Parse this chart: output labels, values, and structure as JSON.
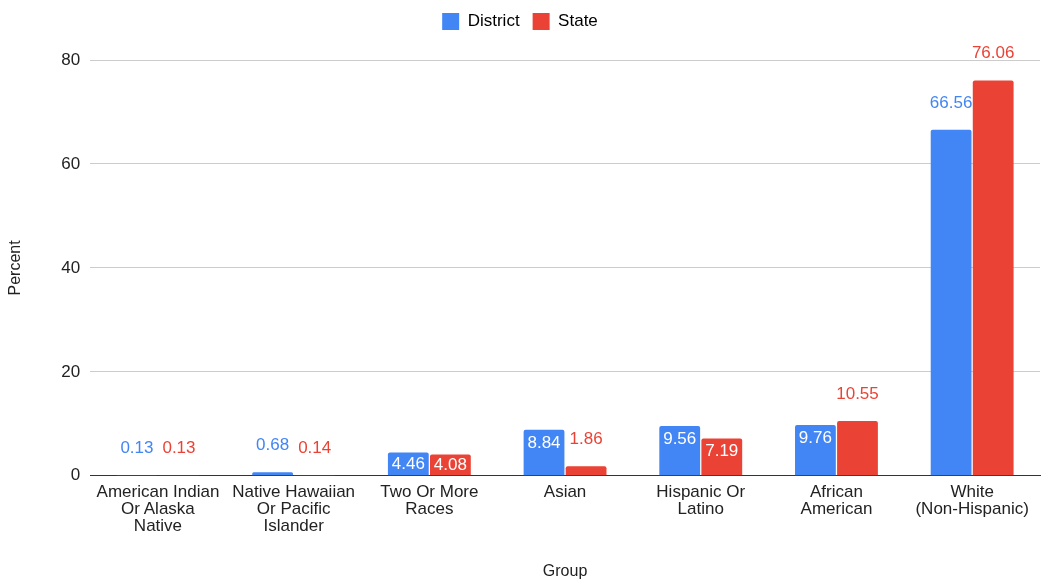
{
  "chart_data": {
    "type": "bar",
    "xlabel": "Group",
    "ylabel": "Percent",
    "categories": [
      "American Indian Or Alaska Native",
      "Native Hawaiian Or Pacific Islander",
      "Two Or More Races",
      "Asian",
      "Hispanic Or Latino",
      "African American",
      "White (Non-Hispanic)"
    ],
    "series": [
      {
        "name": "District",
        "color": "#4285f4",
        "values": [
          0.13,
          0.68,
          4.46,
          8.84,
          9.56,
          9.76,
          66.56
        ]
      },
      {
        "name": "State",
        "color": "#ea4335",
        "values": [
          0.13,
          0.14,
          4.08,
          1.86,
          7.19,
          10.55,
          76.06
        ]
      }
    ],
    "ylim": [
      0,
      80
    ],
    "yticks": [
      0,
      20,
      40,
      60,
      80
    ],
    "grid": "y",
    "legend": "top",
    "data_labels": true
  }
}
